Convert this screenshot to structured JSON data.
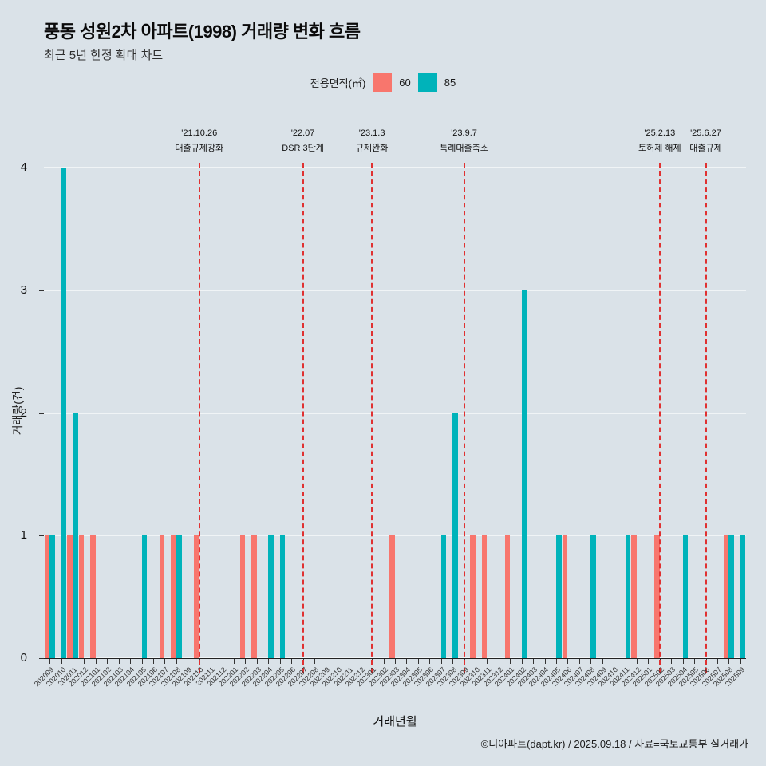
{
  "title": "풍동 성원2차 아파트(1998) 거래량 변화 흐름",
  "subtitle": "최근 5년 한정 확대 차트",
  "legend": {
    "label": "전용면적(㎡)",
    "items": [
      {
        "name": "60",
        "color": "#f8766d"
      },
      {
        "name": "85",
        "color": "#00b3ba"
      }
    ]
  },
  "footer": "©디아파트(dapt.kr) / 2025.09.18 / 자료=국토교통부 실거래가",
  "colors": {
    "background": "#dae2e8",
    "gridline": "#f0f4f6",
    "event_line": "#e03131",
    "series_60": "#f8766d",
    "series_85": "#00b3ba"
  },
  "chart_data": {
    "type": "bar",
    "title": "풍동 성원2차 아파트(1998) 거래량 변화 흐름",
    "subtitle": "최근 5년 한정 확대 차트",
    "xlabel": "거래년월",
    "ylabel": "거래량(건)",
    "ylim": [
      0,
      4
    ],
    "yticks": [
      0,
      1,
      2,
      3,
      4
    ],
    "grid": true,
    "legend_position": "top",
    "categories": [
      "202009",
      "202010",
      "202011",
      "202012",
      "202101",
      "202102",
      "202103",
      "202104",
      "202105",
      "202106",
      "202107",
      "202108",
      "202109",
      "202110",
      "202111",
      "202112",
      "202201",
      "202202",
      "202203",
      "202204",
      "202205",
      "202206",
      "202207",
      "202208",
      "202209",
      "202210",
      "202211",
      "202212",
      "202301",
      "202302",
      "202303",
      "202304",
      "202305",
      "202306",
      "202307",
      "202308",
      "202309",
      "202310",
      "202311",
      "202312",
      "202401",
      "202402",
      "202403",
      "202404",
      "202405",
      "202406",
      "202407",
      "202408",
      "202409",
      "202410",
      "202411",
      "202412",
      "202501",
      "202502",
      "202503",
      "202504",
      "202505",
      "202506",
      "202507",
      "202508",
      "202509"
    ],
    "series": [
      {
        "name": "60",
        "color": "#f8766d",
        "values": [
          1,
          0,
          1,
          1,
          1,
          0,
          0,
          0,
          0,
          0,
          1,
          1,
          0,
          1,
          0,
          0,
          0,
          1,
          1,
          0,
          0,
          0,
          0,
          0,
          0,
          0,
          0,
          0,
          0,
          0,
          1,
          0,
          0,
          0,
          0,
          0,
          0,
          1,
          1,
          0,
          1,
          0,
          0,
          0,
          0,
          1,
          0,
          0,
          0,
          0,
          0,
          1,
          0,
          1,
          0,
          0,
          0,
          0,
          0,
          1,
          0
        ]
      },
      {
        "name": "85",
        "color": "#00b3ba",
        "values": [
          1,
          4,
          2,
          0,
          0,
          0,
          0,
          0,
          1,
          0,
          0,
          1,
          0,
          0,
          0,
          0,
          0,
          0,
          0,
          1,
          1,
          0,
          0,
          0,
          0,
          0,
          0,
          0,
          0,
          0,
          0,
          0,
          0,
          0,
          1,
          2,
          0,
          0,
          0,
          0,
          0,
          3,
          0,
          0,
          1,
          0,
          0,
          1,
          0,
          0,
          1,
          0,
          0,
          0,
          0,
          1,
          0,
          0,
          0,
          1,
          1
        ]
      }
    ],
    "annotations": [
      {
        "month": "202110",
        "date": "'21.10.26",
        "label": "대출규제강화"
      },
      {
        "month": "202207",
        "date": "'22.07",
        "label": "DSR 3단계"
      },
      {
        "month": "202301",
        "date": "'23.1.3",
        "label": "규제완화"
      },
      {
        "month": "202309",
        "date": "'23.9.7",
        "label": "특례대출축소"
      },
      {
        "month": "202502",
        "date": "'25.2.13",
        "label": "토허제 해제"
      },
      {
        "month": "202506",
        "date": "'25.6.27",
        "label": "대출규제"
      }
    ]
  }
}
